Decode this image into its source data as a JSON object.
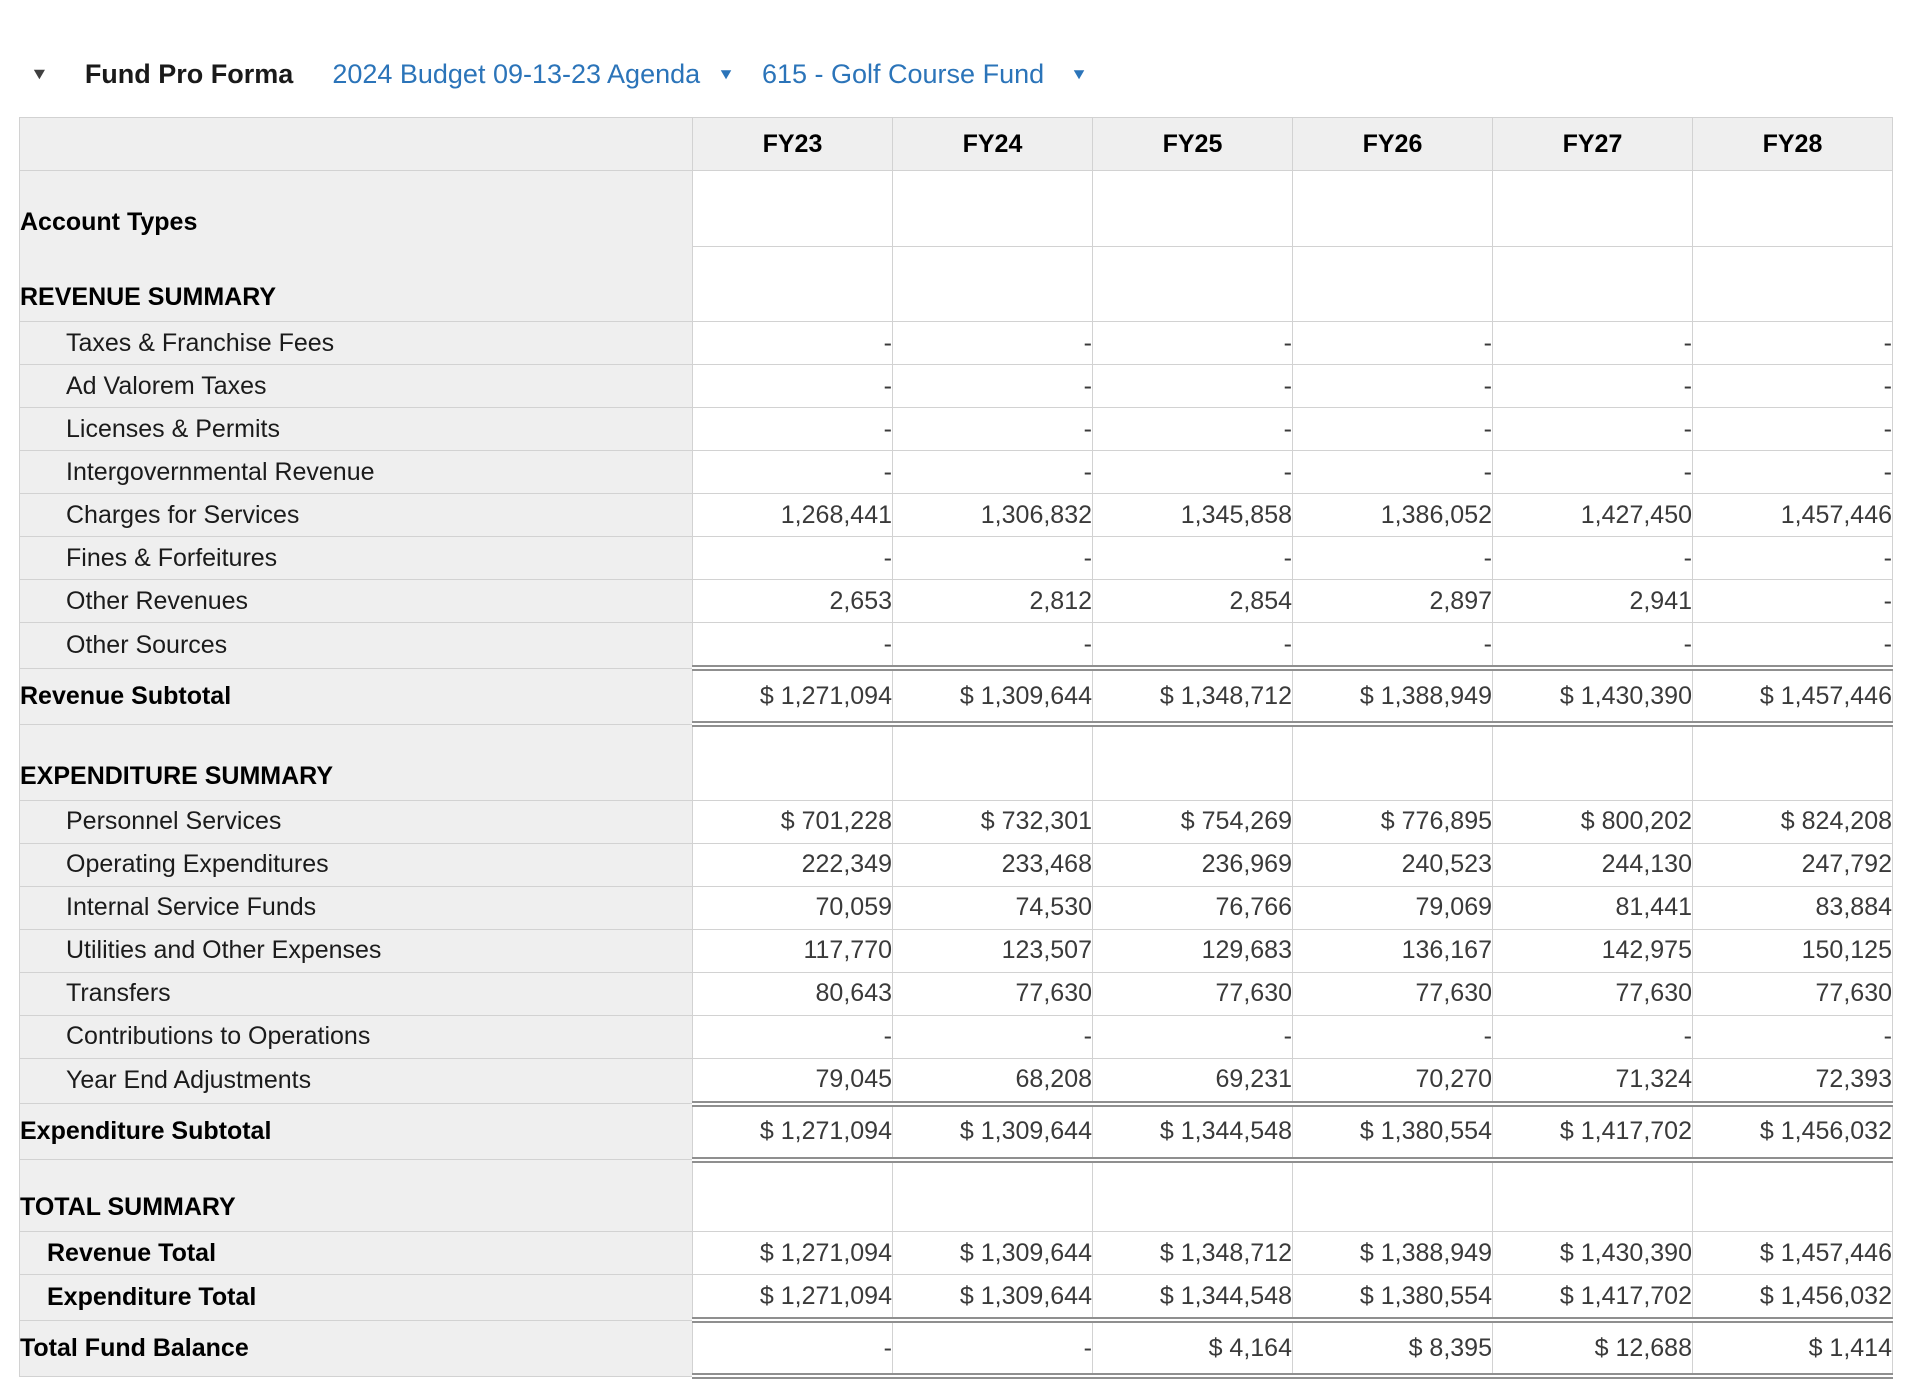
{
  "header": {
    "collapse_icon": "▼",
    "title": "Fund Pro Forma",
    "budget_selector": {
      "label": "2024 Budget 09-13-23 Agenda",
      "dropdown_icon": "▼"
    },
    "fund_selector": {
      "label": "615 - Golf Course Fund",
      "dropdown_icon": "▼"
    }
  },
  "colors": {
    "link_blue": "#2b74b9",
    "header_cell_bg": "#efefef",
    "label_column_bg": "#efefef",
    "grid_border": "#d2d2d2",
    "double_rule": "#8f8f8f",
    "number_text": "#3a3a3a"
  },
  "table": {
    "columns": [
      "FY23",
      "FY24",
      "FY25",
      "FY26",
      "FY27",
      "FY28"
    ],
    "rows": [
      {
        "label": "Account Types",
        "type": "tall",
        "values": [
          "",
          "",
          "",
          "",
          "",
          ""
        ]
      },
      {
        "label": "REVENUE SUMMARY",
        "type": "tall",
        "values": [
          "",
          "",
          "",
          "",
          "",
          ""
        ]
      },
      {
        "label": "Taxes & Franchise Fees",
        "type": "detail",
        "values": [
          "-",
          "-",
          "-",
          "-",
          "-",
          "-"
        ]
      },
      {
        "label": "Ad Valorem Taxes",
        "type": "detail",
        "values": [
          "-",
          "-",
          "-",
          "-",
          "-",
          "-"
        ]
      },
      {
        "label": "Licenses & Permits",
        "type": "detail",
        "values": [
          "-",
          "-",
          "-",
          "-",
          "-",
          "-"
        ]
      },
      {
        "label": "Intergovernmental Revenue",
        "type": "detail",
        "values": [
          "-",
          "-",
          "-",
          "-",
          "-",
          "-"
        ]
      },
      {
        "label": "Charges for Services",
        "type": "detail",
        "values": [
          "1,268,441",
          "1,306,832",
          "1,345,858",
          "1,386,052",
          "1,427,450",
          "1,457,446"
        ]
      },
      {
        "label": "Fines & Forfeitures",
        "type": "detail",
        "values": [
          "-",
          "-",
          "-",
          "-",
          "-",
          "-"
        ]
      },
      {
        "label": "Other Revenues",
        "type": "detail",
        "values": [
          "2,653",
          "2,812",
          "2,854",
          "2,897",
          "2,941",
          "-"
        ]
      },
      {
        "label": "Other Sources",
        "type": "detail",
        "values": [
          "-",
          "-",
          "-",
          "-",
          "-",
          "-"
        ]
      },
      {
        "label": "Revenue Subtotal",
        "type": "subtotal",
        "values": [
          "$ 1,271,094",
          "$ 1,309,644",
          "$ 1,348,712",
          "$ 1,388,949",
          "$ 1,430,390",
          "$ 1,457,446"
        ]
      },
      {
        "label": "EXPENDITURE SUMMARY",
        "type": "tall",
        "values": [
          "",
          "",
          "",
          "",
          "",
          ""
        ]
      },
      {
        "label": "Personnel Services",
        "type": "detail",
        "values": [
          "$ 701,228",
          "$ 732,301",
          "$ 754,269",
          "$ 776,895",
          "$ 800,202",
          "$ 824,208"
        ]
      },
      {
        "label": "Operating Expenditures",
        "type": "detail",
        "values": [
          "222,349",
          "233,468",
          "236,969",
          "240,523",
          "244,130",
          "247,792"
        ]
      },
      {
        "label": "Internal Service Funds",
        "type": "detail",
        "values": [
          "70,059",
          "74,530",
          "76,766",
          "79,069",
          "81,441",
          "83,884"
        ]
      },
      {
        "label": "Utilities and Other Expenses",
        "type": "detail",
        "values": [
          "117,770",
          "123,507",
          "129,683",
          "136,167",
          "142,975",
          "150,125"
        ]
      },
      {
        "label": "Transfers",
        "type": "detail",
        "values": [
          "80,643",
          "77,630",
          "77,630",
          "77,630",
          "77,630",
          "77,630"
        ]
      },
      {
        "label": "Contributions to Operations",
        "type": "detail",
        "values": [
          "-",
          "-",
          "-",
          "-",
          "-",
          "-"
        ]
      },
      {
        "label": "Year End Adjustments",
        "type": "detail",
        "values": [
          "79,045",
          "68,208",
          "69,231",
          "70,270",
          "71,324",
          "72,393"
        ]
      },
      {
        "label": "Expenditure Subtotal",
        "type": "subtotal",
        "values": [
          "$ 1,271,094",
          "$ 1,309,644",
          "$ 1,344,548",
          "$ 1,380,554",
          "$ 1,417,702",
          "$ 1,456,032"
        ]
      },
      {
        "label": "TOTAL SUMMARY",
        "type": "tall",
        "values": [
          "",
          "",
          "",
          "",
          "",
          ""
        ]
      },
      {
        "label": "Revenue Total",
        "type": "total",
        "values": [
          "$ 1,271,094",
          "$ 1,309,644",
          "$ 1,348,712",
          "$ 1,388,949",
          "$ 1,430,390",
          "$ 1,457,446"
        ]
      },
      {
        "label": "Expenditure Total",
        "type": "total",
        "values": [
          "$ 1,271,094",
          "$ 1,309,644",
          "$ 1,344,548",
          "$ 1,380,554",
          "$ 1,417,702",
          "$ 1,456,032"
        ]
      },
      {
        "label": "Total Fund Balance",
        "type": "grand",
        "values": [
          "-",
          "-",
          "$ 4,164",
          "$ 8,395",
          "$ 12,688",
          "$ 1,414"
        ]
      }
    ]
  }
}
